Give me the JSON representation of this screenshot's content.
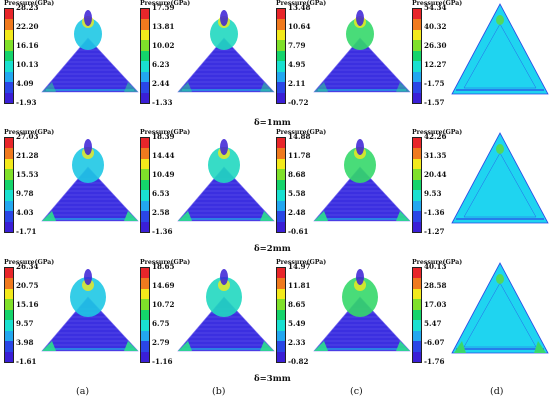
{
  "colorbar_title": "Pressure(GPa)",
  "rows": [
    {
      "label": "δ=1mm",
      "panels": [
        {
          "ticks": [
            "28.23",
            "22.20",
            "16.16",
            "10.13",
            "4.09",
            "-1.93"
          ]
        },
        {
          "ticks": [
            "17.59",
            "13.81",
            "10.02",
            "6.23",
            "2.44",
            "-1.33"
          ]
        },
        {
          "ticks": [
            "13.48",
            "10.64",
            "7.79",
            "4.95",
            "2.11",
            "-0.72"
          ]
        },
        {
          "ticks": [
            "54.34",
            "40.32",
            "26.30",
            "12.27",
            "-1.75",
            "-1.57"
          ]
        }
      ]
    },
    {
      "label": "δ=2mm",
      "panels": [
        {
          "ticks": [
            "27.03",
            "21.28",
            "15.53",
            "9.78",
            "4.03",
            "-1.71"
          ]
        },
        {
          "ticks": [
            "18.39",
            "14.44",
            "10.49",
            "6.53",
            "2.58",
            "-1.36"
          ]
        },
        {
          "ticks": [
            "14.88",
            "11.78",
            "8.68",
            "5.58",
            "2.48",
            "-0.61"
          ]
        },
        {
          "ticks": [
            "42.26",
            "31.35",
            "20.44",
            "9.53",
            "-1.36",
            "-1.27"
          ]
        }
      ]
    },
    {
      "label": "δ=3mm",
      "panels": [
        {
          "ticks": [
            "26.34",
            "20.75",
            "15.16",
            "9.57",
            "3.98",
            "-1.61"
          ]
        },
        {
          "ticks": [
            "18.65",
            "14.69",
            "10.72",
            "6.75",
            "2.79",
            "-1.16"
          ]
        },
        {
          "ticks": [
            "14.97",
            "11.81",
            "8.65",
            "5.49",
            "2.33",
            "-0.82"
          ]
        },
        {
          "ticks": [
            "40.13",
            "28.58",
            "17.03",
            "5.47",
            "-6.07",
            "-1.76"
          ]
        }
      ]
    }
  ],
  "columns": [
    "(a)",
    "(b)",
    "(c)",
    "(d)"
  ],
  "colorbar_colors": [
    "#e8262a",
    "#f07a1e",
    "#f3e91b",
    "#7fe02a",
    "#14d46b",
    "#19e0d0",
    "#22a7f0",
    "#2a46e6",
    "#3a1fd6"
  ]
}
